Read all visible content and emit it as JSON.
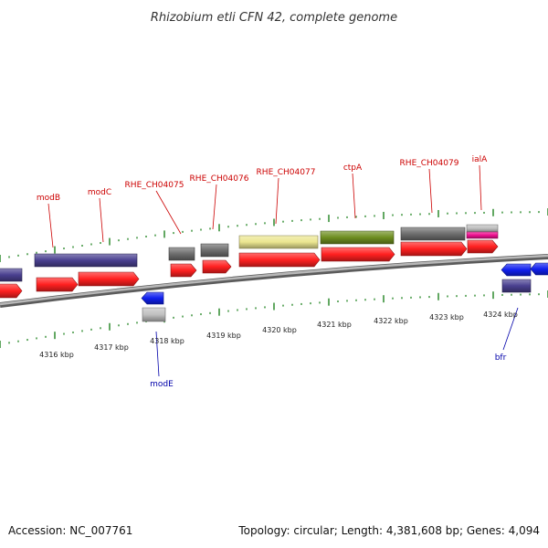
{
  "title": "Rhizobium etli CFN 42, complete genome",
  "footer": {
    "accession": "Accession: NC_007761",
    "info": "Topology: circular; Length: 4,381,608 bp; Genes: 4,094"
  },
  "colors": {
    "background": "#ffffff",
    "backbone": "#8a8a8a",
    "tick": "#2e8b2e",
    "cds": "#ff2020",
    "protein_purple": "#4a4090",
    "protein_gray": "#6e6e6e",
    "protein_yellow": "#ece690",
    "protein_green": "#6e8e20",
    "protein_lightgray": "#c0c0c0",
    "protein_pink": "#ee1090",
    "protein_blue": "#1020ee",
    "label_top": "#cc0000",
    "label_bottom": "#0000aa"
  },
  "kbp_labels": [
    "4316 kbp",
    "4317 kbp",
    "4318 kbp",
    "4319 kbp",
    "4320 kbp",
    "4321 kbp",
    "4322 kbp",
    "4323 kbp",
    "4324 kbp"
  ],
  "gene_labels_top": [
    "modB",
    "modC",
    "RHE_CH04075",
    "RHE_CH04076",
    "RHE_CH04077",
    "ctpA",
    "RHE_CH04079",
    "ialA"
  ],
  "gene_labels_bottom": [
    "modE",
    "bfr"
  ]
}
